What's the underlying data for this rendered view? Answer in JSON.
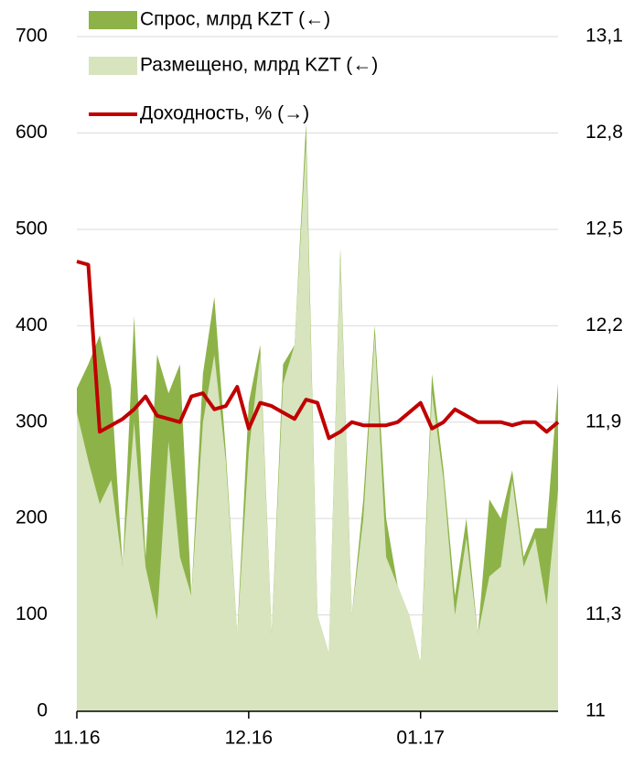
{
  "chart_data": {
    "type": "area_line",
    "categories": [
      "11.16",
      null,
      null,
      null,
      null,
      null,
      null,
      null,
      null,
      null,
      null,
      null,
      null,
      null,
      null,
      "12.16",
      null,
      null,
      null,
      null,
      null,
      null,
      null,
      null,
      null,
      null,
      null,
      null,
      null,
      null,
      "01.17",
      null,
      null,
      null,
      null,
      null,
      null,
      null,
      null,
      null,
      null,
      null,
      null
    ],
    "series": [
      {
        "name": "Спрос, млрд KZT (←)",
        "color": "#8db348",
        "kind": "area",
        "values": [
          335,
          360,
          390,
          335,
          150,
          410,
          160,
          370,
          330,
          360,
          120,
          350,
          430,
          270,
          80,
          320,
          380,
          80,
          360,
          380,
          610,
          100,
          60,
          480,
          100,
          220,
          400,
          200,
          130,
          100,
          50,
          350,
          250,
          120,
          200,
          80,
          220,
          200,
          250,
          160,
          190,
          190,
          340
        ]
      },
      {
        "name": "Размещено, млрд KZT (←)",
        "color": "#d7e4be",
        "kind": "area",
        "values": [
          310,
          260,
          215,
          240,
          150,
          300,
          150,
          95,
          280,
          160,
          120,
          300,
          370,
          260,
          80,
          270,
          370,
          80,
          340,
          380,
          590,
          100,
          60,
          470,
          100,
          200,
          390,
          160,
          130,
          100,
          50,
          330,
          240,
          100,
          180,
          80,
          140,
          150,
          240,
          150,
          180,
          110,
          230
        ]
      },
      {
        "name": "Доходность, % (→)",
        "color": "#c00000",
        "kind": "line",
        "axis": "y2",
        "values": [
          12.4,
          12.39,
          11.87,
          11.89,
          11.91,
          11.94,
          11.98,
          11.92,
          11.91,
          11.9,
          11.98,
          11.99,
          11.94,
          11.95,
          12.01,
          11.88,
          11.96,
          11.95,
          11.93,
          11.91,
          11.97,
          11.96,
          11.85,
          11.87,
          11.9,
          11.89,
          11.89,
          11.89,
          11.9,
          11.93,
          11.96,
          11.88,
          11.9,
          11.94,
          11.92,
          11.9,
          11.9,
          11.9,
          11.89,
          11.9,
          11.9,
          11.87,
          11.9
        ]
      }
    ],
    "ylim": [
      0,
      700
    ],
    "yticks": [
      0,
      100,
      200,
      300,
      400,
      500,
      600,
      700
    ],
    "y2lim": [
      11,
      13.1
    ],
    "y2ticks": [
      11,
      {
        "value": 11.3,
        "label": "11,3"
      },
      {
        "value": 11.6,
        "label": "11,6"
      },
      {
        "value": 11.9,
        "label": "11,9"
      },
      {
        "value": 12.2,
        "label": "12,2"
      },
      {
        "value": 12.5,
        "label": "12,5"
      },
      {
        "value": 12.8,
        "label": "12,8"
      },
      {
        "value": 13.1,
        "label": "13,1"
      }
    ],
    "grid": true,
    "legend": "top-left"
  }
}
